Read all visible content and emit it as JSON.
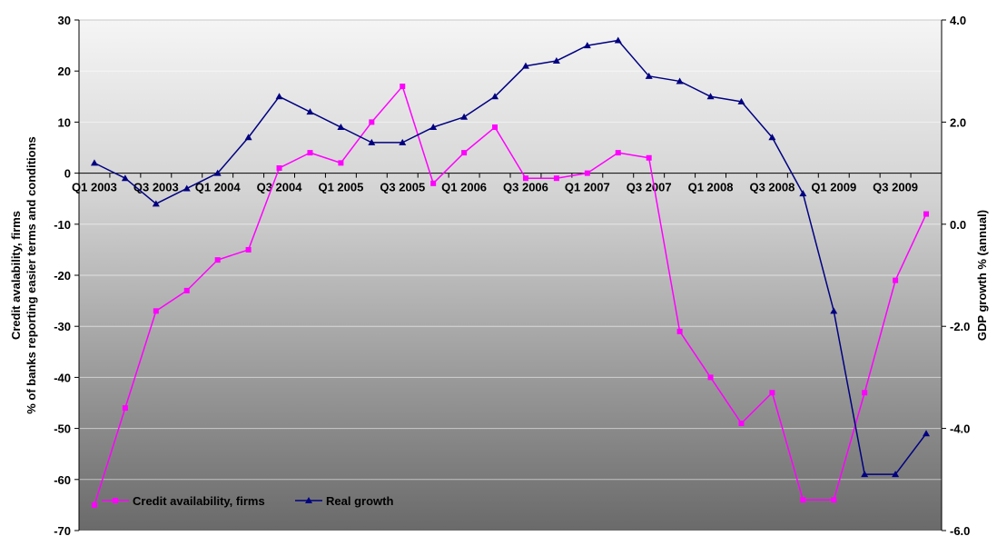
{
  "chart_data": {
    "type": "line",
    "title": "",
    "x": [
      "Q1 2003",
      "Q2 2003",
      "Q3 2003",
      "Q4 2003",
      "Q1 2004",
      "Q2 2004",
      "Q3 2004",
      "Q4 2004",
      "Q1 2005",
      "Q2 2005",
      "Q3 2005",
      "Q4 2005",
      "Q1 2006",
      "Q2 2006",
      "Q3 2006",
      "Q4 2006",
      "Q1 2007",
      "Q2 2007",
      "Q3 2007",
      "Q4 2007",
      "Q1 2008",
      "Q2 2008",
      "Q3 2008",
      "Q4 2008",
      "Q1 2009",
      "Q2 2009",
      "Q3 2009",
      "Q4 2009"
    ],
    "tick_labels": [
      "Q1 2003",
      "Q3 2003",
      "Q1 2004",
      "Q3 2004",
      "Q1 2005",
      "Q3 2005",
      "Q1 2006",
      "Q3 2006",
      "Q1 2007",
      "Q3 2007",
      "Q1 2008",
      "Q3 2008",
      "Q1 2009",
      "Q3 2009"
    ],
    "left_axis": {
      "label_line1": "Credit avalability, firms",
      "label_line2": "% of banks reporting easier terms and conditions",
      "ylim": [
        -70,
        30
      ],
      "ticks": [
        "30",
        "20",
        "10",
        "0",
        "-10",
        "-20",
        "-30",
        "-40",
        "-50",
        "-60",
        "-70"
      ]
    },
    "right_axis": {
      "label": "GDP growth % (annual)",
      "ylim": [
        -6.0,
        4.0
      ],
      "ticks": [
        "4.0",
        "2.0",
        "0.0",
        "-2.0",
        "-4.0",
        "-6.0"
      ]
    },
    "series": [
      {
        "name": "Credit availability, firms",
        "axis": "left",
        "color": "#ff00ff",
        "marker": "square",
        "values": [
          -65,
          -46,
          -27,
          -23,
          -17,
          -15,
          1,
          4,
          2,
          10,
          17,
          -2,
          4,
          9,
          -1,
          -1,
          0,
          4,
          3,
          -31,
          -40,
          -49,
          -43,
          -64,
          -64,
          -43,
          -21,
          -8
        ]
      },
      {
        "name": "Real growth",
        "axis": "right",
        "color": "#000080",
        "marker": "triangle",
        "values": [
          1.2,
          0.9,
          0.4,
          0.7,
          1.0,
          1.7,
          2.5,
          2.2,
          1.9,
          1.6,
          1.6,
          1.9,
          2.1,
          2.5,
          3.1,
          3.2,
          3.5,
          3.6,
          2.9,
          2.8,
          2.5,
          2.4,
          1.7,
          0.6,
          -1.7,
          -4.9,
          -4.9,
          -4.1
        ]
      }
    ],
    "grid": true,
    "legend": "bottom-left"
  }
}
